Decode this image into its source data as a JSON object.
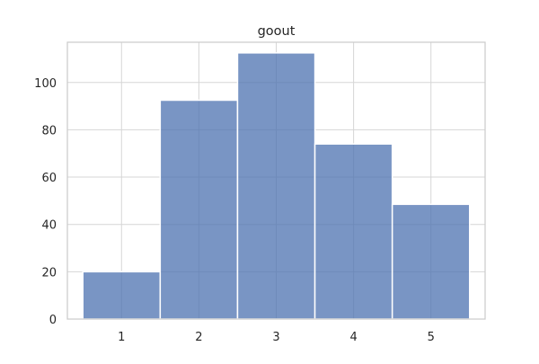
{
  "chart_data": {
    "type": "bar",
    "title": "goout",
    "xlabel": "",
    "ylabel": "",
    "categories": [
      "1",
      "2",
      "3",
      "4",
      "5"
    ],
    "values": [
      20,
      92.5,
      112.5,
      74,
      48.5
    ],
    "ylim": [
      0,
      117
    ],
    "yticks": [
      0,
      20,
      40,
      60,
      80,
      100
    ],
    "grid": true,
    "bar_color": "#4c72b0",
    "bar_opacity": 0.75
  }
}
